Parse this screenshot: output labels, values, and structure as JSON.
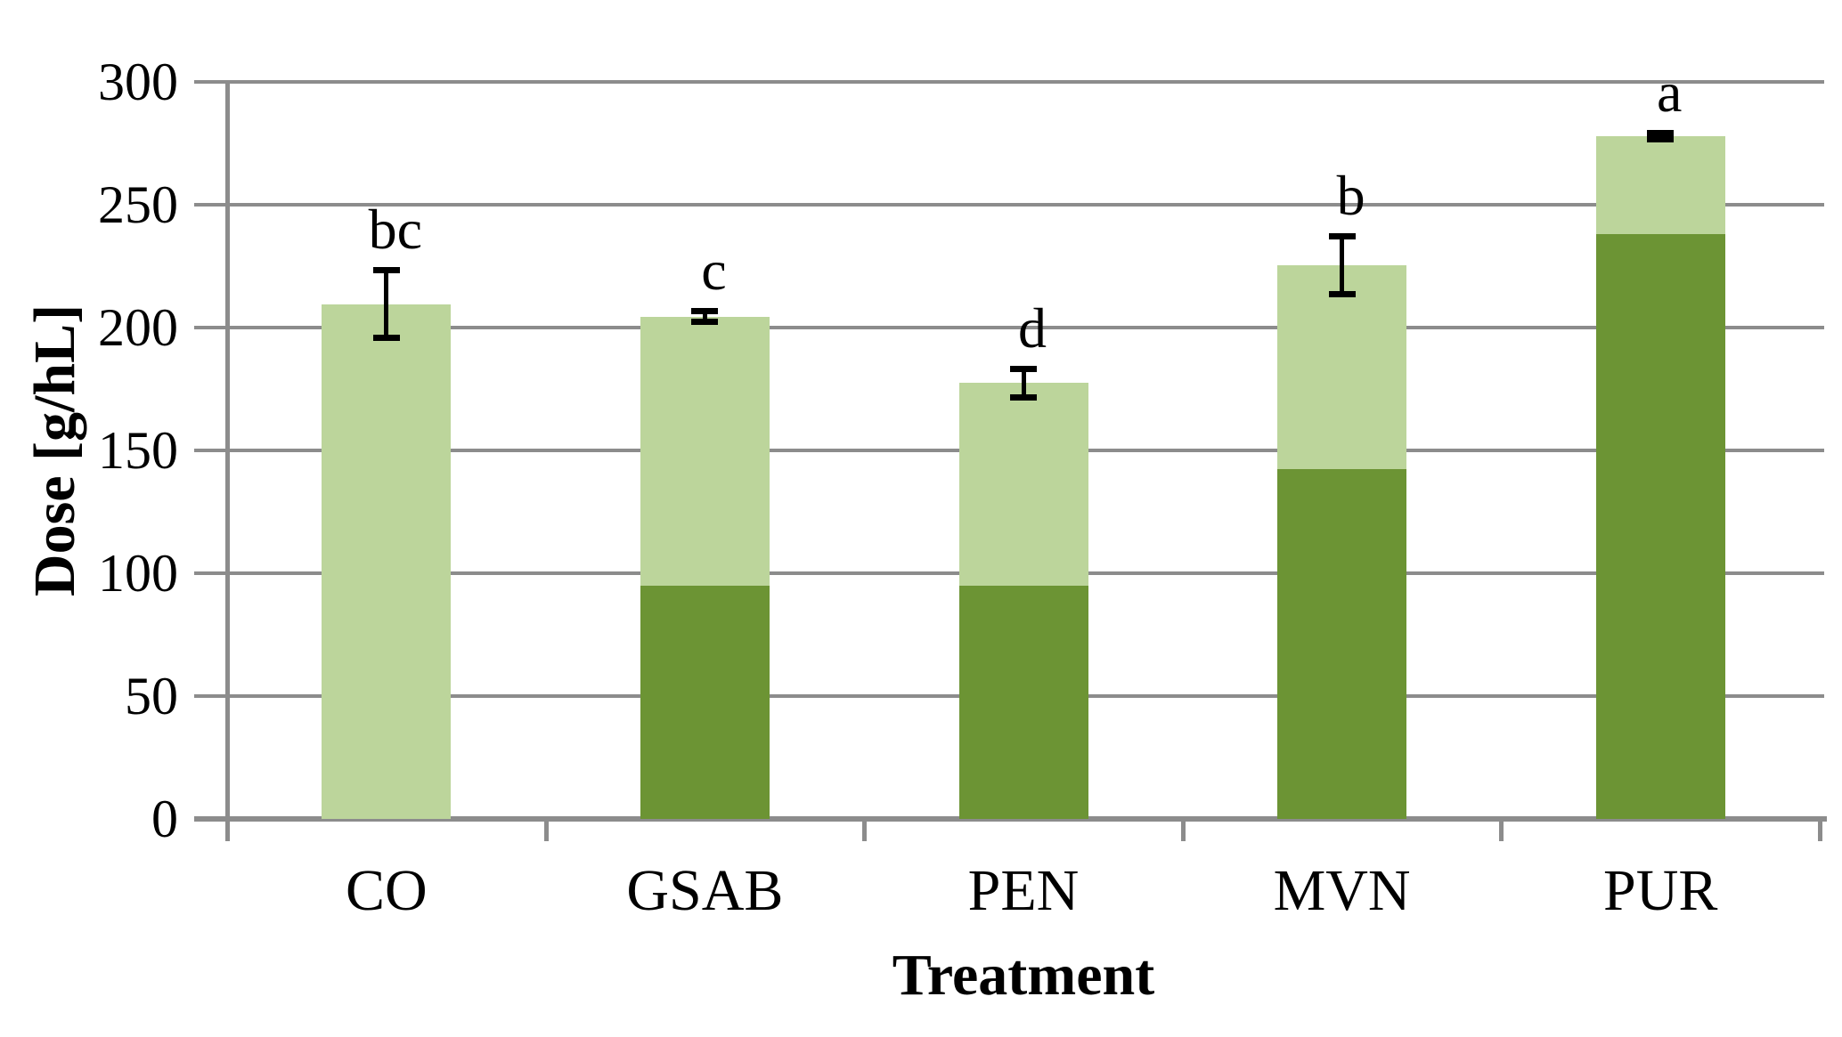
{
  "chart_data": {
    "type": "bar",
    "stacked": true,
    "title": "",
    "xlabel": "Treatment",
    "ylabel": "Dose [g/hL]",
    "categories": [
      "CO",
      "GSAB",
      "PEN",
      "MVN",
      "PUR"
    ],
    "series": [
      {
        "name": "dark-green-segment",
        "color": "#6C9434",
        "values": [
          0,
          95,
          95,
          142.5,
          238
        ]
      },
      {
        "name": "light-green-segment",
        "color": "#BCD59B",
        "values": [
          209.5,
          109.5,
          82.5,
          83,
          40
        ]
      }
    ],
    "totals": [
      209.5,
      204.5,
      177.5,
      225.5,
      278
    ],
    "error_bars": {
      "plus": [
        14,
        2.5,
        6,
        12,
        1.5
      ],
      "minus": [
        14,
        2.5,
        6,
        12,
        1.5
      ]
    },
    "sig_letters": [
      "bc",
      "c",
      "d",
      "b",
      "a"
    ],
    "ylim": [
      0,
      300
    ],
    "ytick_step": 50,
    "yticks": [
      "0",
      "50",
      "100",
      "150",
      "200",
      "250",
      "300"
    ],
    "grid": true,
    "legend": "none",
    "colors": {
      "gridline": "#8C8C8C",
      "axis": "#8C8C8C",
      "error_bar": "#000000",
      "text": "#000000",
      "background": "#FFFFFF"
    }
  }
}
